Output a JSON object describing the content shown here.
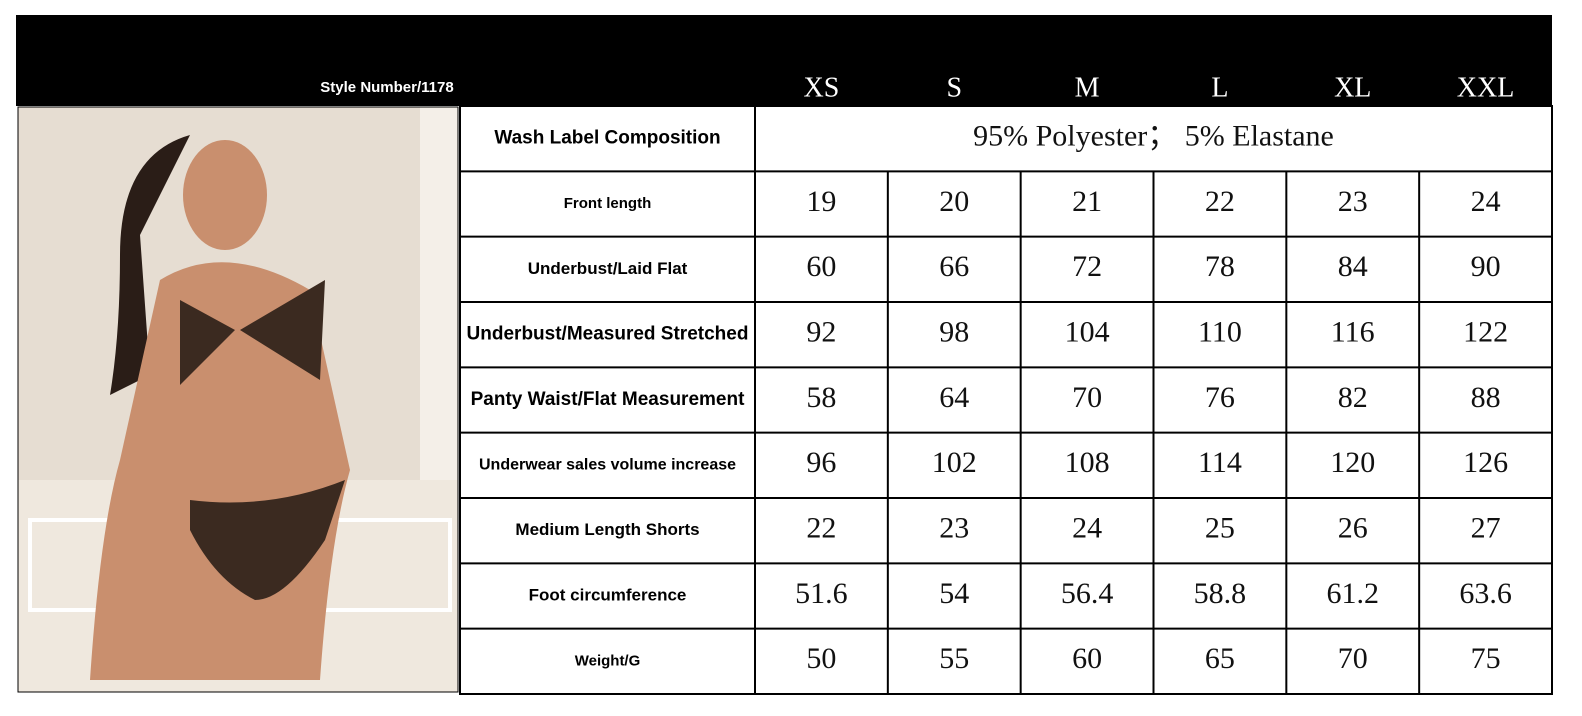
{
  "header": {
    "style_number": "Style Number/1178",
    "sizes": [
      "XS",
      "S",
      "M",
      "L",
      "XL",
      "XXL"
    ]
  },
  "table": {
    "composition": {
      "label": "Wash Label Composition",
      "value": "95% Polyester； 5% Elastane"
    },
    "rows": [
      {
        "label": "Front length",
        "values": [
          19,
          20,
          21,
          22,
          23,
          24
        ]
      },
      {
        "label": "Underbust/Laid Flat",
        "values": [
          60,
          66,
          72,
          78,
          84,
          90
        ]
      },
      {
        "label": "Underbust/Measured Stretched",
        "values": [
          92,
          98,
          104,
          110,
          116,
          122
        ]
      },
      {
        "label": "Panty Waist/Flat Measurement",
        "values": [
          58,
          64,
          70,
          76,
          82,
          88
        ]
      },
      {
        "label": "Underwear sales volume increase",
        "values": [
          96,
          102,
          108,
          114,
          120,
          126
        ]
      },
      {
        "label": "Medium Length Shorts",
        "values": [
          22,
          23,
          24,
          25,
          26,
          27
        ]
      },
      {
        "label": "Foot circumference",
        "values": [
          51.6,
          54,
          56.4,
          58.8,
          61.2,
          63.6
        ]
      },
      {
        "label": "Weight/G",
        "values": [
          50,
          55,
          60,
          65,
          70,
          75
        ]
      }
    ]
  }
}
